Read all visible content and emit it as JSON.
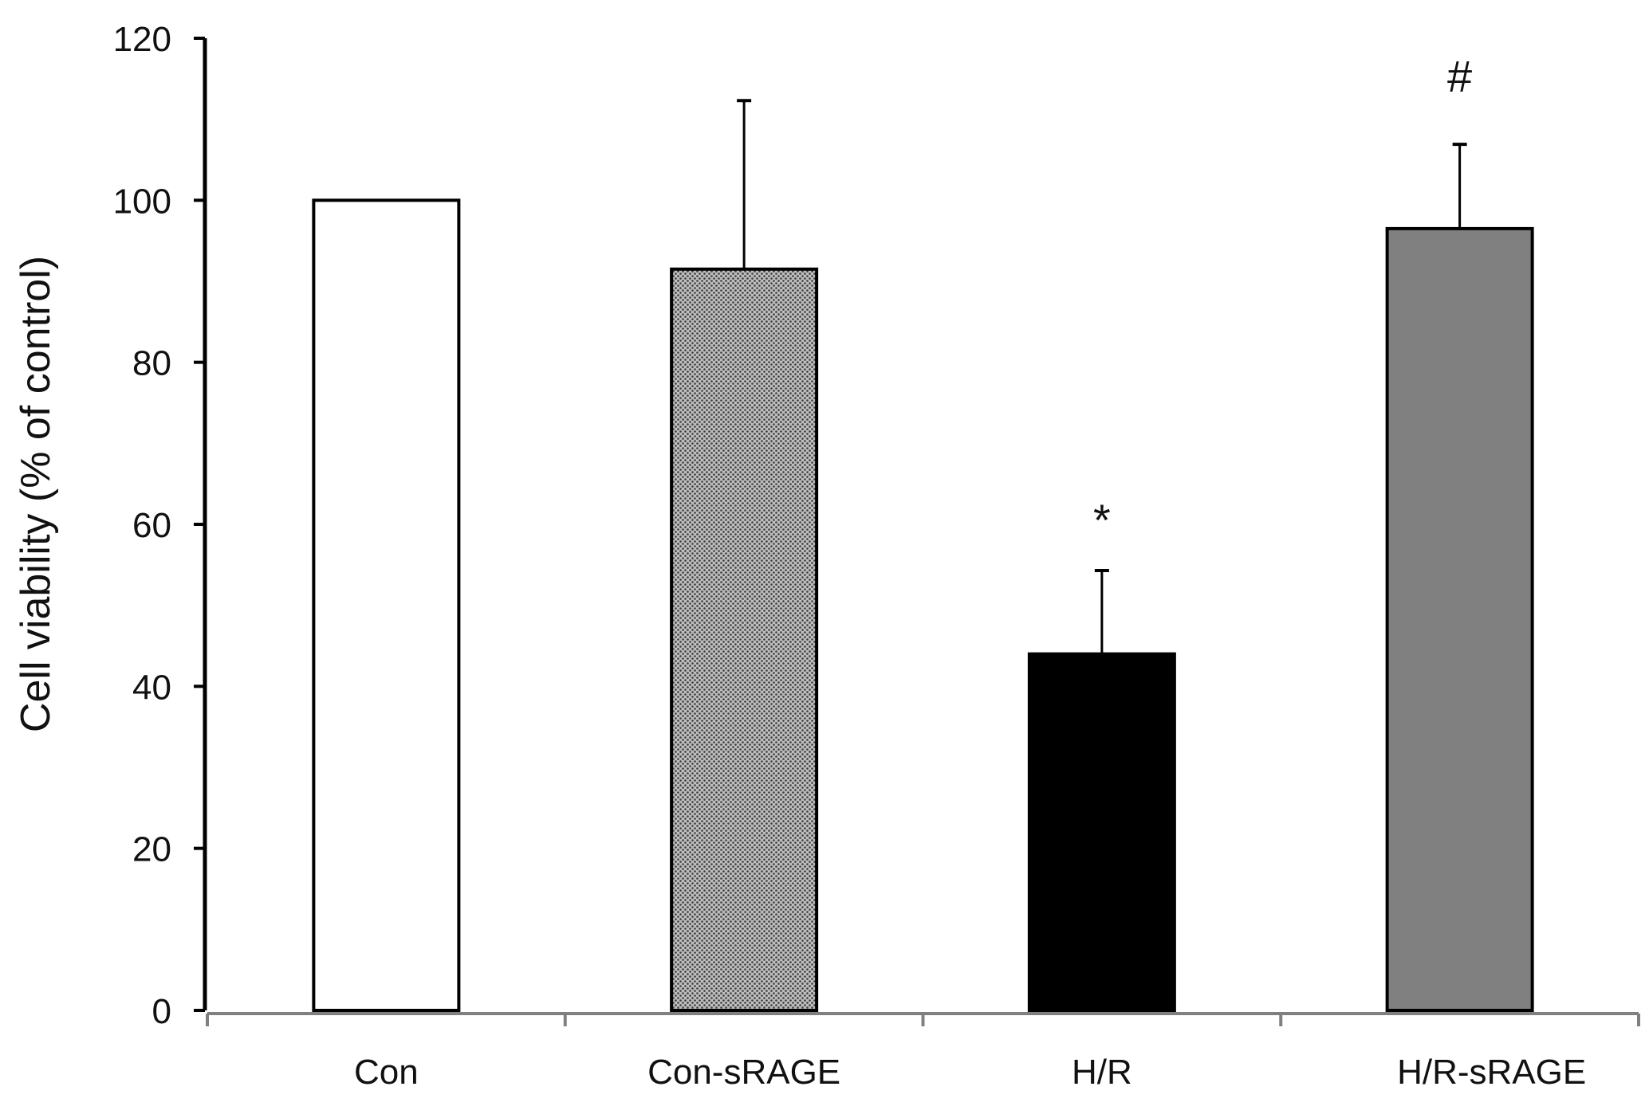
{
  "chart_data": {
    "type": "bar",
    "title": "",
    "xlabel": "",
    "ylabel": "Cell viability (% of control)",
    "ylim": [
      0,
      120
    ],
    "yticks": [
      0,
      20,
      40,
      60,
      80,
      100,
      120
    ],
    "ytick_labels": [
      "0",
      "20",
      "40",
      "60",
      "80",
      "100",
      "120"
    ],
    "categories": [
      "Con",
      "Con-sRAGE",
      "H/R",
      "H/R-sRAGE"
    ],
    "values": [
      100,
      91.5,
      44,
      96.5
    ],
    "errors": [
      0,
      20.8,
      10.3,
      10.4
    ],
    "annotations": [
      "",
      "",
      "*",
      "#"
    ],
    "bar_fills": [
      "#ffffff",
      "pattern-dots",
      "#000000",
      "#808080"
    ],
    "grid": false,
    "legend": "none"
  }
}
